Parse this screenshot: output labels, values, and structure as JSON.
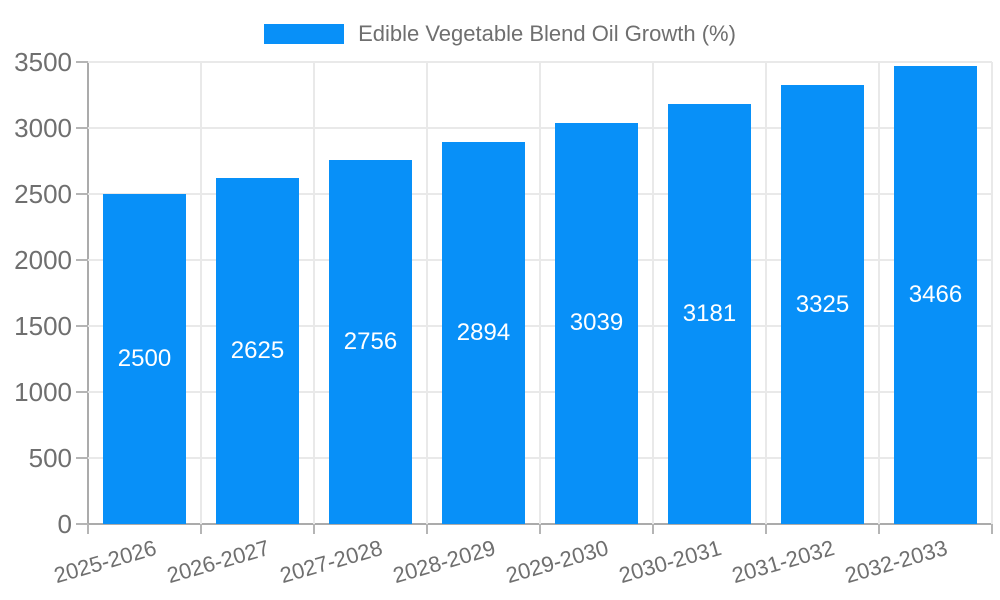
{
  "legend": {
    "label": "Edible Vegetable Blend Oil Growth (%)"
  },
  "chart_data": {
    "type": "bar",
    "title": "Edible Vegetable Blend Oil Growth (%)",
    "categories": [
      "2025-2026",
      "2026-2027",
      "2027-2028",
      "2028-2029",
      "2029-2030",
      "2030-2031",
      "2031-2032",
      "2032-2033"
    ],
    "values": [
      2500,
      2625,
      2756,
      2894,
      3039,
      3181,
      3325,
      3466
    ],
    "series": [
      {
        "name": "Edible Vegetable Blend Oil Growth (%)",
        "values": [
          2500,
          2625,
          2756,
          2894,
          3039,
          3181,
          3325,
          3466
        ]
      }
    ],
    "xlabel": "",
    "ylabel": "",
    "ylim": [
      0,
      3500
    ],
    "ytick_step": 500,
    "yticks": [
      0,
      500,
      1000,
      1500,
      2000,
      2500,
      3000,
      3500
    ],
    "grid": true,
    "legend_position": "top",
    "value_label_position": "inside-center",
    "x_label_rotation_deg": -16,
    "colors": {
      "bar": "#0890f8",
      "grid": "#e9e9e9",
      "axis": "#ababab",
      "tick": "#b5b5b5",
      "tick_text": "#6f6f6f",
      "value_label": "#ffffff",
      "background": "#ffffff"
    }
  }
}
